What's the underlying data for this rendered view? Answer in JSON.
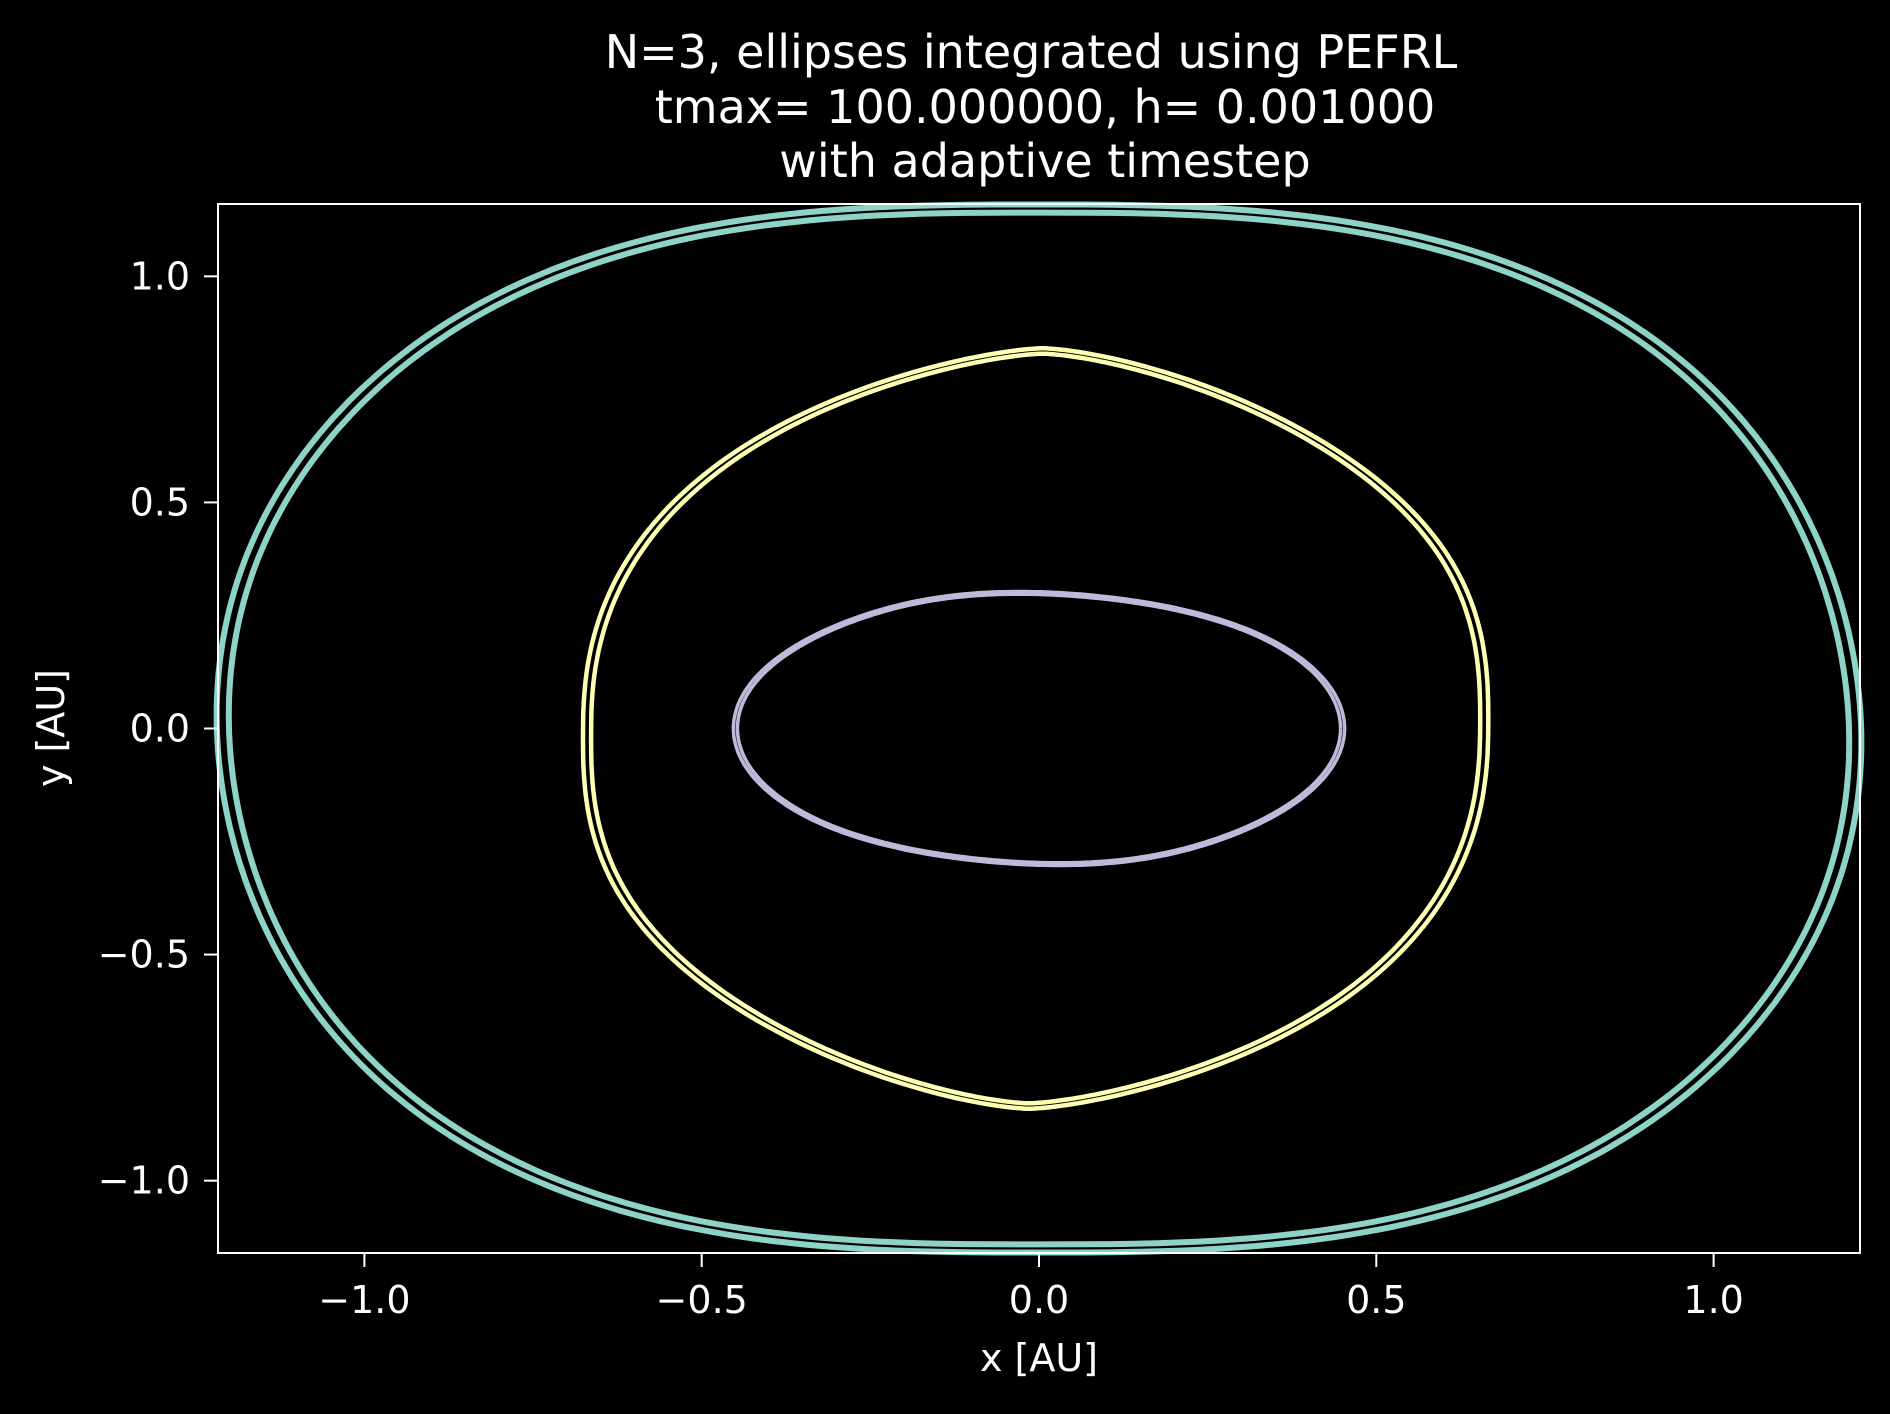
{
  "chart_data": {
    "type": "line",
    "title_lines": [
      "N=3, ellipses integrated using PEFRL",
      "tmax= 100.000000, h= 0.001000",
      "with adaptive timestep"
    ],
    "xlabel": "x [AU]",
    "ylabel": "y [AU]",
    "xlim": [
      -1.217,
      1.217
    ],
    "ylim": [
      -1.16,
      1.16
    ],
    "xticks": [
      -1.0,
      -0.5,
      0.0,
      0.5,
      1.0
    ],
    "xtick_labels": [
      "−1.0",
      "−0.5",
      "0.0",
      "0.5",
      "1.0"
    ],
    "yticks": [
      1.0,
      0.5,
      0.0,
      -0.5,
      -1.0
    ],
    "ytick_labels": [
      "1.0",
      "0.5",
      "0.0",
      "−0.5",
      "−1.0"
    ],
    "grid": false,
    "legend": "none",
    "background": "#000000",
    "series": [
      {
        "color": "#8dd3c7",
        "shape": "pointed-ellipse",
        "x_extent": [
          -1.21,
          1.21
        ],
        "y_extent": [
          -1.15,
          1.15
        ],
        "cusp_y": [
          0.03,
          -0.03
        ],
        "peak_x": [
          0.0,
          0.0
        ],
        "band": 0.018
      },
      {
        "color": "#ffffb3",
        "shape": "rounded-ellipse",
        "x_extent": [
          -0.67,
          0.66
        ],
        "y_extent": [
          -0.835,
          0.835
        ],
        "cusp_y": [
          -0.02,
          0.02
        ],
        "peak_x": [
          0.01,
          -0.01
        ],
        "band": 0.012
      },
      {
        "color": "#bebada",
        "shape": "ellipse",
        "x_extent": [
          -0.45,
          0.45
        ],
        "y_extent": [
          -0.3,
          0.3
        ],
        "cusp_y": [
          0.0,
          0.0
        ],
        "peak_x": [
          -0.03,
          0.03
        ],
        "band": 0.006
      }
    ]
  }
}
